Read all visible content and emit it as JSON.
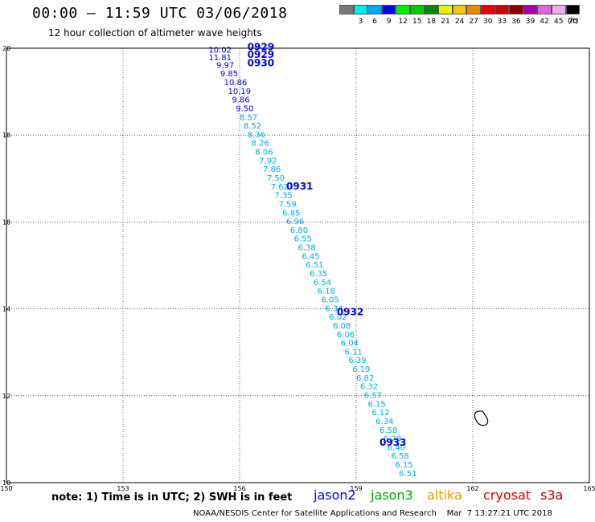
{
  "header": {
    "title": "00:00 – 11:59 UTC 03/06/2018",
    "subtitle": "12 hour collection of altimeter wave heights"
  },
  "colorbar": {
    "colors": [
      "#777777",
      "#00eeee",
      "#00aaee",
      "#0000ee",
      "#00ee00",
      "#00cc00",
      "#008800",
      "#eeee00",
      "#eecc00",
      "#ee8800",
      "#ee0000",
      "#cc0000",
      "#880000",
      "#aa00aa",
      "#dd66dd",
      "#eeaaee",
      "#000000"
    ],
    "labels": [
      "",
      "3",
      "6",
      "9",
      "12",
      "15",
      "18",
      "21",
      "24",
      "27",
      "30",
      "33",
      "36",
      "39",
      "42",
      "45",
      "70"
    ],
    "unit": "(ft)"
  },
  "axes": {
    "x_ticks": [
      "150",
      "153",
      "156",
      "159",
      "162",
      "165"
    ],
    "y_ticks": [
      "10",
      "12",
      "14",
      "16",
      "18",
      "20"
    ],
    "y_ticks_shown": [
      "10",
      "12",
      "14",
      "18",
      "18",
      "20"
    ]
  },
  "time_labels": [
    {
      "text": "0929",
      "lon": 156.2,
      "lat": 19.95
    },
    {
      "text": "0929",
      "lon": 156.2,
      "lat": 19.78
    },
    {
      "text": "0930",
      "lon": 156.2,
      "lat": 19.58
    },
    {
      "text": "0931",
      "lon": 157.2,
      "lat": 16.75
    },
    {
      "text": "0932",
      "lon": 158.5,
      "lat": 13.85
    },
    {
      "text": "0933",
      "lon": 159.6,
      "lat": 10.85
    }
  ],
  "swh_values": [
    {
      "text": "10.02",
      "lon": 155.2,
      "lat": 19.9
    },
    {
      "text": "11.81",
      "lon": 155.2,
      "lat": 19.72
    },
    {
      "text": "9.97",
      "lon": 155.4,
      "lat": 19.55
    },
    {
      "text": "9.85",
      "lon": 155.5,
      "lat": 19.35
    },
    {
      "text": "10.86",
      "lon": 155.6,
      "lat": 19.15
    },
    {
      "text": "10.19",
      "lon": 155.7,
      "lat": 18.95
    },
    {
      "text": "9.86",
      "lon": 155.8,
      "lat": 18.75
    },
    {
      "text": "9.50",
      "lon": 155.9,
      "lat": 18.55
    },
    {
      "text": "8.57",
      "lon": 156.0,
      "lat": 18.35
    },
    {
      "text": "8.52",
      "lon": 156.1,
      "lat": 18.15
    },
    {
      "text": "8.36",
      "lon": 156.2,
      "lat": 17.95
    },
    {
      "text": "8.26",
      "lon": 156.3,
      "lat": 17.75
    },
    {
      "text": "8.06",
      "lon": 156.4,
      "lat": 17.55
    },
    {
      "text": "7.92",
      "lon": 156.5,
      "lat": 17.35
    },
    {
      "text": "7.86",
      "lon": 156.6,
      "lat": 17.15
    },
    {
      "text": "7.50",
      "lon": 156.7,
      "lat": 16.95
    },
    {
      "text": "7.62",
      "lon": 156.8,
      "lat": 16.75
    },
    {
      "text": "7.35",
      "lon": 156.9,
      "lat": 16.55
    },
    {
      "text": "7.59",
      "lon": 157.0,
      "lat": 16.35
    },
    {
      "text": "6.85",
      "lon": 157.1,
      "lat": 16.15
    },
    {
      "text": "6.96",
      "lon": 157.2,
      "lat": 15.95
    },
    {
      "text": "6.80",
      "lon": 157.3,
      "lat": 15.75
    },
    {
      "text": "6.55",
      "lon": 157.4,
      "lat": 15.55
    },
    {
      "text": "6.38",
      "lon": 157.5,
      "lat": 15.35
    },
    {
      "text": "6.45",
      "lon": 157.6,
      "lat": 15.15
    },
    {
      "text": "6.51",
      "lon": 157.7,
      "lat": 14.95
    },
    {
      "text": "6.35",
      "lon": 157.8,
      "lat": 14.75
    },
    {
      "text": "6.54",
      "lon": 157.9,
      "lat": 14.55
    },
    {
      "text": "6.18",
      "lon": 158.0,
      "lat": 14.35
    },
    {
      "text": "6.05",
      "lon": 158.1,
      "lat": 14.15
    },
    {
      "text": "6.34",
      "lon": 158.2,
      "lat": 13.95
    },
    {
      "text": "6.02",
      "lon": 158.3,
      "lat": 13.75
    },
    {
      "text": "6.08",
      "lon": 158.4,
      "lat": 13.55
    },
    {
      "text": "6.06",
      "lon": 158.5,
      "lat": 13.35
    },
    {
      "text": "6.04",
      "lon": 158.6,
      "lat": 13.15
    },
    {
      "text": "6.11",
      "lon": 158.7,
      "lat": 12.95
    },
    {
      "text": "6.39",
      "lon": 158.8,
      "lat": 12.75
    },
    {
      "text": "6.19",
      "lon": 158.9,
      "lat": 12.55
    },
    {
      "text": "6.82",
      "lon": 159.0,
      "lat": 12.35
    },
    {
      "text": "6.32",
      "lon": 159.1,
      "lat": 12.15
    },
    {
      "text": "6.57",
      "lon": 159.2,
      "lat": 11.95
    },
    {
      "text": "6.15",
      "lon": 159.3,
      "lat": 11.75
    },
    {
      "text": "6.12",
      "lon": 159.4,
      "lat": 11.55
    },
    {
      "text": "6.34",
      "lon": 159.5,
      "lat": 11.35
    },
    {
      "text": "6.58",
      "lon": 159.6,
      "lat": 11.15
    },
    {
      "text": "6.28",
      "lon": 159.7,
      "lat": 10.95
    },
    {
      "text": "6.40",
      "lon": 159.8,
      "lat": 10.75
    },
    {
      "text": "6.58",
      "lon": 159.9,
      "lat": 10.55
    },
    {
      "text": "6.15",
      "lon": 160.0,
      "lat": 10.35
    },
    {
      "text": "6.51",
      "lon": 160.1,
      "lat": 10.15
    }
  ],
  "note": "note: 1) Time is in UTC; 2) SWH is in feet",
  "satellites": [
    {
      "name": "jason2",
      "color": "#0000ee"
    },
    {
      "name": "jason3",
      "color": "#00aa00"
    },
    {
      "name": "altika",
      "color": "#ee9900"
    },
    {
      "name": "cryosat",
      "color": "#dd0000"
    },
    {
      "name": "s3a",
      "color": "#aa0000"
    }
  ],
  "footer": "NOAA/NESDIS Center for Satellite Applications and Research    Mar  7 13:27:21 UTC 2018"
}
